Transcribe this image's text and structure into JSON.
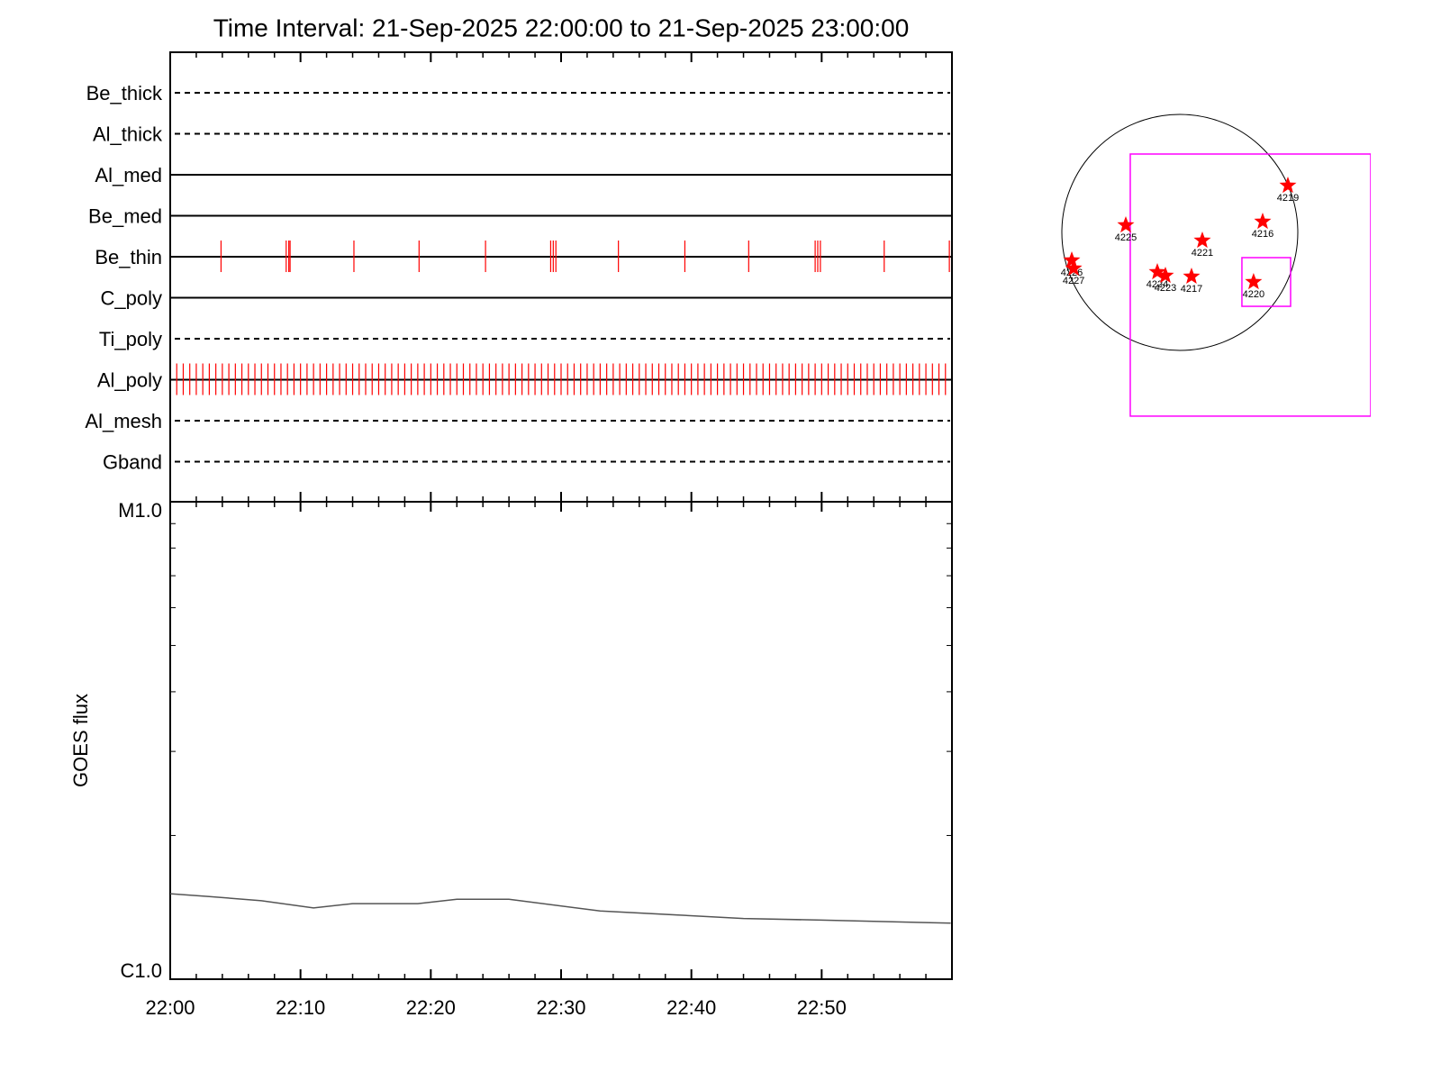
{
  "chart_data": [
    {
      "type": "timeline",
      "title": "Time Interval: 21-Sep-2025 22:00:00 to 21-Sep-2025 23:00:00",
      "event_color": "#ff0000",
      "rows": [
        {
          "name": "Be_thick",
          "style": "dashed",
          "events": []
        },
        {
          "name": "Al_thick",
          "style": "dashed",
          "events": []
        },
        {
          "name": "Al_med",
          "style": "solid",
          "events": []
        },
        {
          "name": "Be_med",
          "style": "solid",
          "events": []
        },
        {
          "name": "Be_thin",
          "style": "solid",
          "events": [
            3.9,
            8.9,
            9.1,
            9.2,
            14.1,
            19.1,
            24.2,
            29.2,
            29.4,
            29.6,
            34.4,
            39.5,
            44.4,
            49.5,
            49.7,
            49.9,
            54.8,
            59.8
          ]
        },
        {
          "name": "C_poly",
          "style": "solid",
          "events": []
        },
        {
          "name": "Ti_poly",
          "style": "dashed",
          "events": []
        },
        {
          "name": "Al_poly",
          "style": "solid",
          "events": [
            0,
            0.5,
            1,
            1.5,
            2,
            2.5,
            3,
            3.5,
            4,
            4.5,
            5,
            5.5,
            6,
            6.5,
            7,
            7.5,
            8,
            8.5,
            9,
            9.5,
            10,
            10.5,
            11,
            11.5,
            12,
            12.5,
            13,
            13.5,
            14,
            14.5,
            15,
            15.5,
            16,
            16.5,
            17,
            17.5,
            18,
            18.5,
            19,
            19.5,
            20,
            20.5,
            21,
            21.5,
            22,
            22.5,
            23,
            23.5,
            24,
            24.5,
            25,
            25.5,
            26,
            26.5,
            27,
            27.5,
            28,
            28.5,
            29,
            29.5,
            30,
            30.5,
            31,
            31.5,
            32,
            32.5,
            33,
            33.5,
            34,
            34.5,
            35,
            35.5,
            36,
            36.5,
            37,
            37.5,
            38,
            38.5,
            39,
            39.5,
            40,
            40.5,
            41,
            41.5,
            42,
            42.5,
            43,
            43.5,
            44,
            44.5,
            45,
            45.5,
            46,
            46.5,
            47,
            47.5,
            48,
            48.5,
            49,
            49.5,
            50,
            50.5,
            51,
            51.5,
            52,
            52.5,
            53,
            53.5,
            54,
            54.5,
            55,
            55.5,
            56,
            56.5,
            57,
            57.5,
            58,
            58.5,
            59,
            59.5
          ]
        },
        {
          "name": "Al_mesh",
          "style": "dashed",
          "events": []
        },
        {
          "name": "Gband",
          "style": "dashed",
          "events": []
        }
      ]
    },
    {
      "type": "line",
      "y_label": "GOES flux",
      "color": "#555555",
      "log_scale": true,
      "x": [
        0,
        3,
        7,
        11,
        14,
        19,
        22,
        26,
        33,
        44,
        50,
        59.9
      ],
      "values": [
        1.51e-06,
        1.49e-06,
        1.46e-06,
        1.41e-06,
        1.44e-06,
        1.44e-06,
        1.47e-06,
        1.47e-06,
        1.39e-06,
        1.34e-06,
        1.33e-06,
        1.31e-06
      ],
      "xlim": [
        0,
        60
      ],
      "xticks": [
        {
          "value": 0,
          "label": "22:00"
        },
        {
          "value": 10,
          "label": "22:10"
        },
        {
          "value": 20,
          "label": "22:20"
        },
        {
          "value": 30,
          "label": "22:30"
        },
        {
          "value": 40,
          "label": "22:40"
        },
        {
          "value": 50,
          "label": "22:50"
        }
      ],
      "ylim": [
        1e-06,
        1e-05
      ],
      "yticks": [
        {
          "value": 1e-06,
          "label": "C1.0"
        },
        {
          "value": 1e-05,
          "label": "M1.0"
        }
      ],
      "yminor": [
        2e-06,
        3e-06,
        4e-06,
        5e-06,
        6e-06,
        7e-06,
        8e-06,
        9e-06
      ]
    },
    {
      "type": "map",
      "color": "#ff0000",
      "box_color": "#ff00ff",
      "radius": 950,
      "points": [
        {
          "label": "4219",
          "x": 870,
          "y": 377
        },
        {
          "label": "4216",
          "x": 667,
          "y": 87
        },
        {
          "label": "4225",
          "x": -435,
          "y": 58
        },
        {
          "label": "4221",
          "x": 181,
          "y": -65
        },
        {
          "label": "4226",
          "x": -870,
          "y": -225
        },
        {
          "label": "4227",
          "x": -855,
          "y": -290
        },
        {
          "label": "4224",
          "x": -181,
          "y": -319
        },
        {
          "label": "4223",
          "x": -116,
          "y": -348
        },
        {
          "label": "4217",
          "x": 94,
          "y": -355
        },
        {
          "label": "4220",
          "x": 594,
          "y": -399
        }
      ],
      "boxes": [
        {
          "x": [
            -399,
            1537
          ],
          "y": [
            -1479,
            631
          ]
        },
        {
          "x": [
            500,
            892
          ],
          "y": [
            -595,
            -203
          ]
        }
      ]
    }
  ]
}
